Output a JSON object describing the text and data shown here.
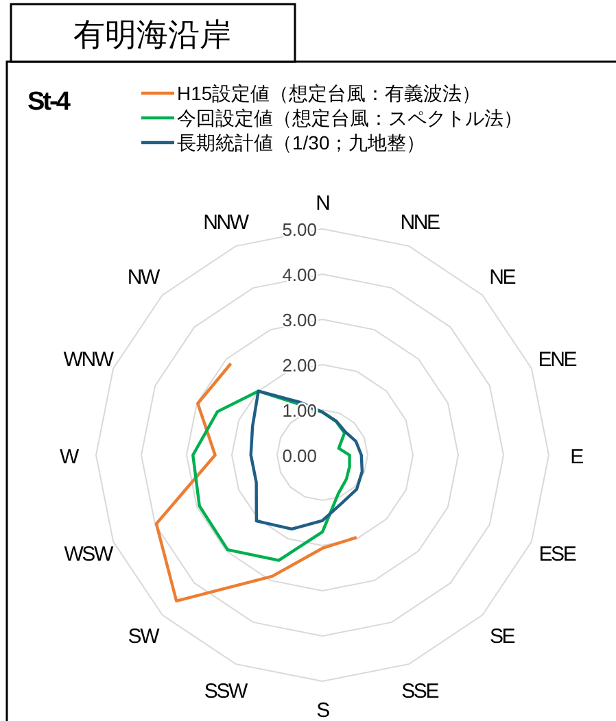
{
  "chart_data": {
    "type": "radar",
    "title": "有明海沿岸",
    "subtitle": "St-4",
    "categories": [
      "N",
      "NNE",
      "NE",
      "ENE",
      "E",
      "ESE",
      "SE",
      "SSE",
      "S",
      "SSW",
      "SW",
      "WSW",
      "W",
      "WNW",
      "NW",
      "NNW"
    ],
    "ylim": [
      0,
      5
    ],
    "yticks": [
      {
        "value": 0,
        "label": "0.00"
      },
      {
        "value": 1,
        "label": "1.00"
      },
      {
        "value": 2,
        "label": "2.00"
      },
      {
        "value": 3,
        "label": "3.00"
      },
      {
        "value": 4,
        "label": "4.00"
      },
      {
        "value": 5,
        "label": "5.00"
      }
    ],
    "grid": true,
    "legend": "top",
    "marker": "none",
    "line_style": "solid",
    "series": [
      {
        "name": "H15設定値（想定台風：有義波法）",
        "color": "#ed7d31",
        "values": [
          null,
          null,
          null,
          null,
          null,
          null,
          null,
          1.97,
          2.06,
          2.9,
          4.56,
          3.97,
          2.37,
          2.98,
          2.86,
          null
        ]
      },
      {
        "name": "今回設定値（想定台風：スペクトル法）",
        "color": "#00b050",
        "values": [
          0.95,
          0.8,
          0.69,
          0.39,
          0.6,
          0.65,
          0.75,
          0.92,
          1.7,
          2.52,
          2.96,
          2.94,
          2.86,
          2.51,
          2.0,
          1.2
        ]
      },
      {
        "name": "長期統計値（1/30；九地整）",
        "color": "#1f5f86",
        "values": [
          0.95,
          0.81,
          0.72,
          0.8,
          0.86,
          0.95,
          1.07,
          1.14,
          1.45,
          1.77,
          2.06,
          1.58,
          1.58,
          1.67,
          2.0,
          1.26
        ]
      }
    ]
  }
}
